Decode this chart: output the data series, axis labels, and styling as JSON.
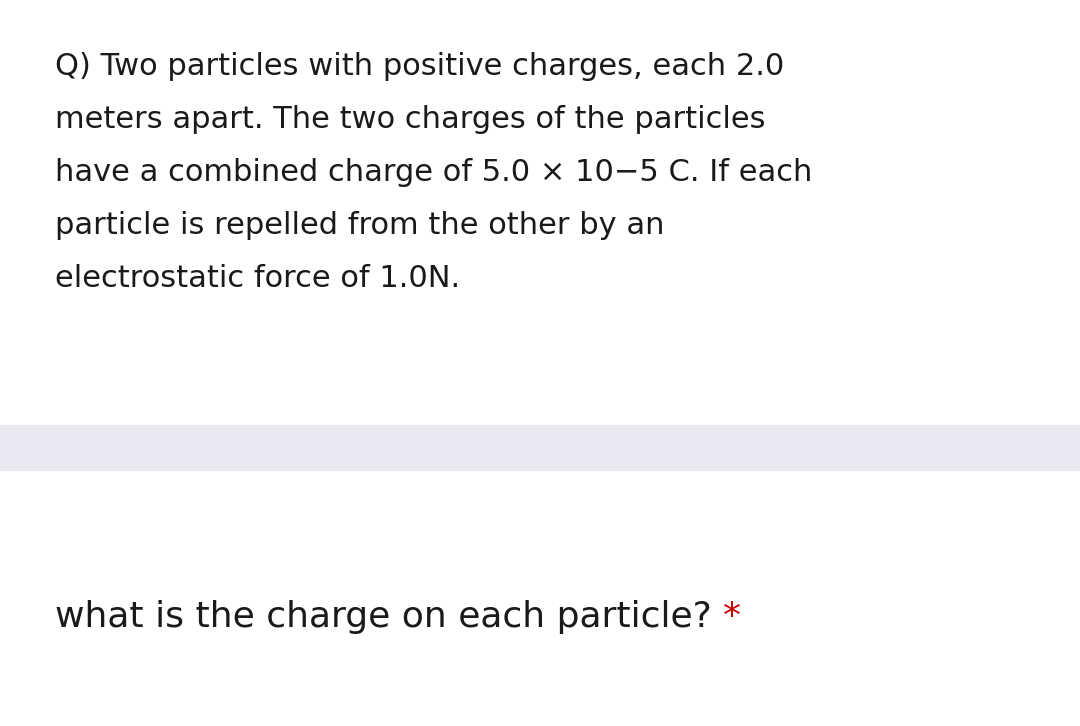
{
  "bg_color": "#ffffff",
  "divider_color": "#e8e8f0",
  "question_text_lines": [
    "Q) Two particles with positive charges, each 2.0",
    "meters apart. The two charges of the particles",
    "have a combined charge of 5.0 × 10−5 C. If each",
    "particle is repelled from the other by an",
    "electrostatic force of 1.0N."
  ],
  "answer_text": "what is the charge on each particle? ",
  "asterisk": "*",
  "text_color": "#1a1a1a",
  "asterisk_color": "#cc0000",
  "question_fontsize": 22,
  "answer_fontsize": 26,
  "font_family": "DejaVu Sans"
}
